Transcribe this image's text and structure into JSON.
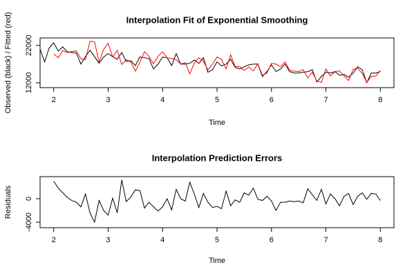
{
  "chart_data": [
    {
      "type": "line",
      "title": "Interpolation Fit of Exponential Smoothing",
      "x_label": "Time",
      "y_label": "Observed (black) / Fitted (red)",
      "x": [
        1.75,
        1.833,
        1.917,
        2,
        2.083,
        2.167,
        2.25,
        2.333,
        2.417,
        2.5,
        2.583,
        2.667,
        2.75,
        2.833,
        2.917,
        3,
        3.083,
        3.167,
        3.25,
        3.333,
        3.417,
        3.5,
        3.583,
        3.667,
        3.75,
        3.833,
        3.917,
        4,
        4.083,
        4.167,
        4.25,
        4.333,
        4.417,
        4.5,
        4.583,
        4.667,
        4.75,
        4.833,
        4.917,
        5,
        5.083,
        5.167,
        5.25,
        5.333,
        5.417,
        5.5,
        5.583,
        5.667,
        5.75,
        5.833,
        5.917,
        6,
        6.083,
        6.167,
        6.25,
        6.333,
        6.417,
        6.5,
        6.583,
        6.667,
        6.75,
        6.833,
        6.917,
        7,
        7.083,
        7.167,
        7.25,
        7.333,
        7.417,
        7.5,
        7.583,
        7.667,
        7.75,
        7.833,
        7.917,
        8
      ],
      "series": [
        {
          "name": "Observed",
          "color": "#000000",
          "values": [
            21000,
            17600,
            21300,
            22700,
            20500,
            21600,
            20300,
            20100,
            19900,
            17000,
            19000,
            20700,
            19000,
            17200,
            18900,
            19800,
            19000,
            18300,
            20100,
            17700,
            17900,
            16600,
            18900,
            18700,
            18500,
            15700,
            17000,
            18900,
            18700,
            16600,
            19800,
            17000,
            17000,
            17200,
            18100,
            17200,
            18700,
            14800,
            15500,
            17600,
            16500,
            17000,
            18300,
            16100,
            15700,
            16300,
            16800,
            17000,
            17000,
            13700,
            15000,
            16800,
            15000,
            15700,
            17000,
            15000,
            14600,
            14600,
            14800,
            15000,
            15500,
            12200,
            13700,
            14800,
            14600,
            15000,
            14000,
            14200,
            13500,
            14600,
            16300,
            15500,
            12000,
            14600,
            14600,
            15000
          ]
        },
        {
          "name": "Fitted",
          "color": "#ff0000",
          "values": [
            null,
            null,
            null,
            19700,
            18700,
            20600,
            20100,
            20400,
            20500,
            18400,
            18200,
            23100,
            23000,
            17500,
            20900,
            22600,
            18900,
            20700,
            16900,
            18200,
            17600,
            15100,
            17500,
            20300,
            19100,
            17100,
            19100,
            20300,
            18700,
            18500,
            18200,
            17000,
            17400,
            14400,
            17300,
            18700,
            17800,
            15400,
            17000,
            18900,
            18200,
            15700,
            19500,
            16300,
            16300,
            15300,
            16200,
            15200,
            17100,
            14000,
            14600,
            17200,
            17000,
            16300,
            17600,
            15400,
            15100,
            15000,
            15500,
            13300,
            14800,
            12500,
            12100,
            15700,
            13800,
            15000,
            15200,
            13800,
            12600,
            15600,
            15900,
            14500,
            12100,
            13700,
            13800,
            15300
          ]
        }
      ],
      "xlim": [
        1.75,
        8.25
      ],
      "xticks": [
        2,
        3,
        4,
        5,
        6,
        7,
        8
      ],
      "ylim": [
        10700,
        24000
      ],
      "yticks": [
        12000,
        22000
      ]
    },
    {
      "type": "line",
      "title": "Interpolation Prediction Errors",
      "x_label": "Time",
      "y_label": "Residuals",
      "x": [
        2,
        2.083,
        2.167,
        2.25,
        2.333,
        2.417,
        2.5,
        2.583,
        2.667,
        2.75,
        2.833,
        2.917,
        3,
        3.083,
        3.167,
        3.25,
        3.333,
        3.417,
        3.5,
        3.583,
        3.667,
        3.75,
        3.833,
        3.917,
        4,
        4.083,
        4.167,
        4.25,
        4.333,
        4.417,
        4.5,
        4.583,
        4.667,
        4.75,
        4.833,
        4.917,
        5,
        5.083,
        5.167,
        5.25,
        5.333,
        5.417,
        5.5,
        5.583,
        5.667,
        5.75,
        5.833,
        5.917,
        6,
        6.083,
        6.167,
        6.25,
        6.333,
        6.417,
        6.5,
        6.583,
        6.667,
        6.75,
        6.833,
        6.917,
        7,
        7.083,
        7.167,
        7.25,
        7.333,
        7.417,
        7.5,
        7.583,
        7.667,
        7.75,
        7.833,
        7.917,
        8
      ],
      "series": [
        {
          "name": "Residuals",
          "color": "#000000",
          "values": [
            3000,
            1800,
            1000,
            200,
            -300,
            -600,
            -1400,
            800,
            -2400,
            -4000,
            -300,
            -2000,
            -2800,
            100,
            -2400,
            3200,
            -500,
            300,
            1500,
            1400,
            -1600,
            -600,
            -1400,
            -2100,
            -1400,
            0,
            -1900,
            1600,
            0,
            -400,
            2800,
            800,
            -1500,
            900,
            -600,
            -1500,
            -1300,
            -1700,
            1300,
            -1200,
            -200,
            -600,
            1000,
            600,
            1800,
            -100,
            -300,
            400,
            -400,
            -2000,
            -600,
            -600,
            -400,
            -500,
            -400,
            -700,
            1700,
            700,
            -300,
            1600,
            -900,
            800,
            0,
            -1200,
            400,
            900,
            -1000,
            400,
            1000,
            -100,
            900,
            800,
            -300
          ]
        }
      ],
      "xlim": [
        1.75,
        8.25
      ],
      "xticks": [
        2,
        3,
        4,
        5,
        6,
        7,
        8
      ],
      "ylim": [
        -4940,
        3760
      ],
      "yticks": [
        -4000,
        0
      ]
    }
  ]
}
